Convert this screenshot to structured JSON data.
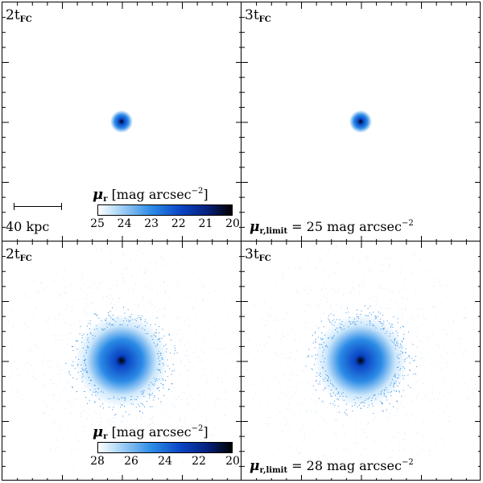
{
  "panels": [
    {
      "time_label": "2t",
      "time_sub": "FC",
      "halo": "small"
    },
    {
      "time_label": "3t",
      "time_sub": "FC",
      "halo": "small"
    },
    {
      "time_label": "2t",
      "time_sub": "FC",
      "halo": "large"
    },
    {
      "time_label": "3t",
      "time_sub": "FC",
      "halo": "large"
    }
  ],
  "colorbars": [
    {
      "symbol": "μ",
      "sub": "r",
      "unit": "[mag arcsec",
      "exp": "−2",
      "close": "]",
      "ticks": [
        "25",
        "24",
        "23",
        "22",
        "21",
        "20"
      ]
    },
    {
      "symbol": "μ",
      "sub": "r",
      "unit": "[mag arcsec",
      "exp": "−2",
      "close": "]",
      "ticks": [
        "28",
        "26",
        "24",
        "22",
        "20"
      ]
    }
  ],
  "limits": [
    {
      "symbol": "μ",
      "sub": "r,limit",
      "text": "= 25 mag arcsec",
      "exp": "−2"
    },
    {
      "symbol": "μ",
      "sub": "r,limit",
      "text": "= 28 mag arcsec",
      "exp": "−2"
    }
  ],
  "scale_bar": {
    "label": "40 kpc"
  },
  "colors": {
    "halo_core": "#000000",
    "halo_mid": "#0a44c4",
    "halo_outer": "#2b8be6",
    "halo_fade": "#cfe8fb"
  }
}
